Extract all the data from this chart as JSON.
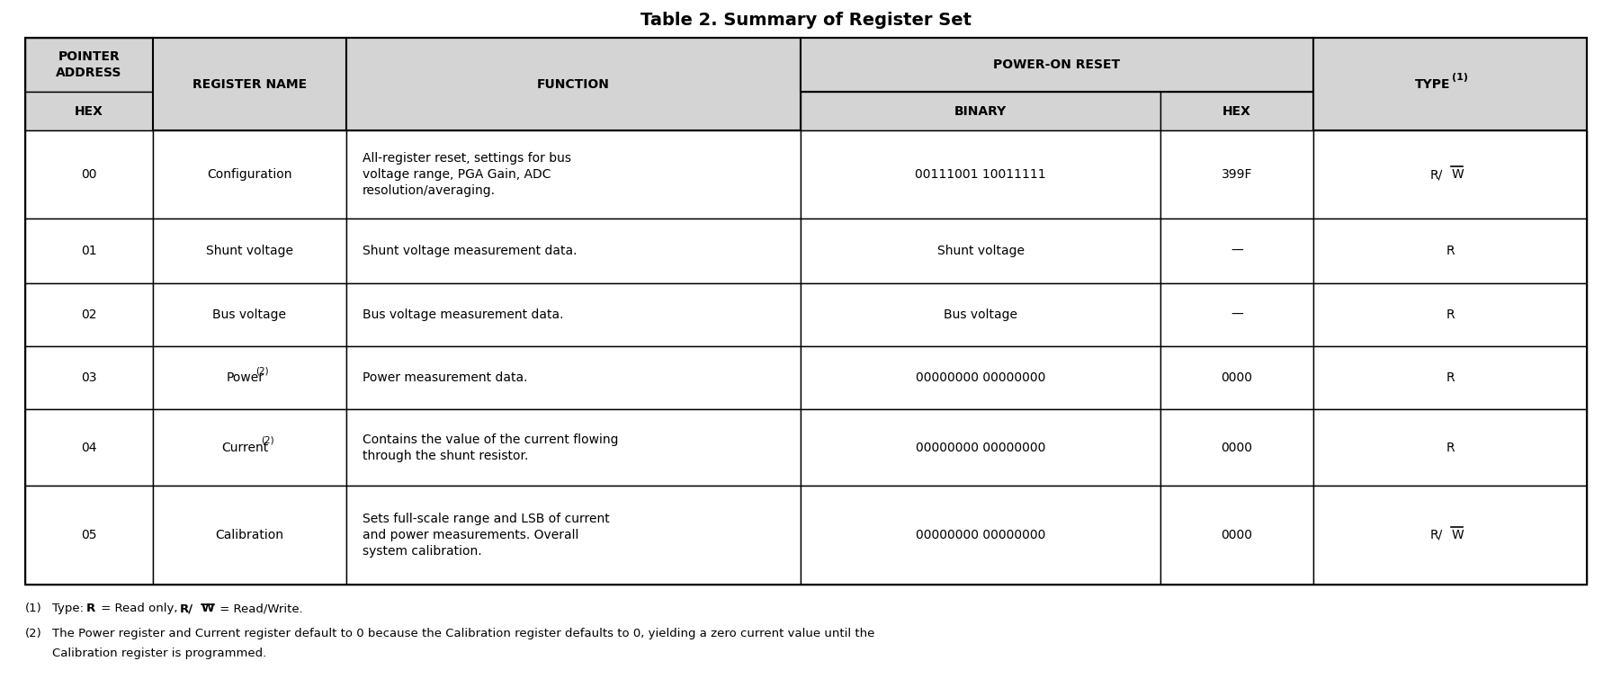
{
  "title": "Table 2. Summary of Register Set",
  "background_color": "#ffffff",
  "header_bg": "#d4d4d4",
  "border_color": "#000000",
  "rows": [
    {
      "hex": "00",
      "name": "Configuration",
      "name_super": "",
      "function_lines": [
        "All-register reset, settings for bus",
        "voltage range, PGA Gain, ADC",
        "resolution/averaging."
      ],
      "binary": "00111001 10011111",
      "hex_val": "399F",
      "type": "RW",
      "type_overline": true
    },
    {
      "hex": "01",
      "name": "Shunt voltage",
      "name_super": "",
      "function_lines": [
        "Shunt voltage measurement data."
      ],
      "binary": "Shunt voltage",
      "hex_val": "—",
      "type": "R",
      "type_overline": false
    },
    {
      "hex": "02",
      "name": "Bus voltage",
      "name_super": "",
      "function_lines": [
        "Bus voltage measurement data."
      ],
      "binary": "Bus voltage",
      "hex_val": "—",
      "type": "R",
      "type_overline": false
    },
    {
      "hex": "03",
      "name": "Power",
      "name_super": "(2)",
      "function_lines": [
        "Power measurement data."
      ],
      "binary": "00000000 00000000",
      "hex_val": "0000",
      "type": "R",
      "type_overline": false
    },
    {
      "hex": "04",
      "name": "Current",
      "name_super": "(2)",
      "function_lines": [
        "Contains the value of the current flowing",
        "through the shunt resistor."
      ],
      "binary": "00000000 00000000",
      "hex_val": "0000",
      "type": "R",
      "type_overline": false
    },
    {
      "hex": "05",
      "name": "Calibration",
      "name_super": "",
      "function_lines": [
        "Sets full-scale range and LSB of current",
        "and power measurements. Overall",
        "system calibration."
      ],
      "binary": "00000000 00000000",
      "hex_val": "0000",
      "type": "RW",
      "type_overline": true
    }
  ]
}
